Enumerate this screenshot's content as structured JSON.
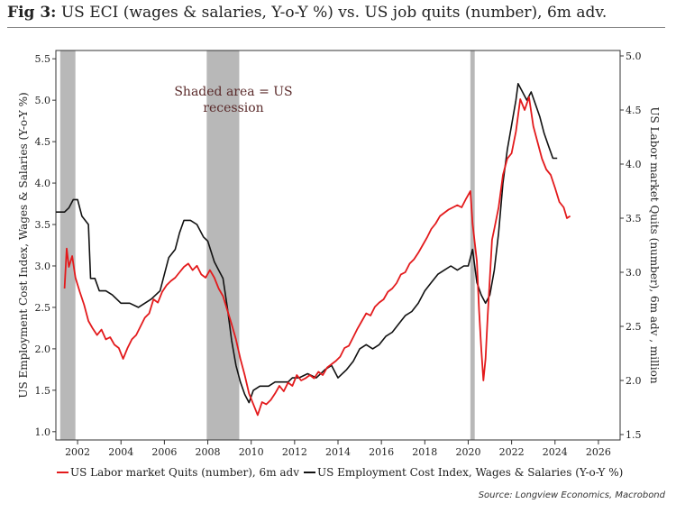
{
  "figure": {
    "fig_label": "Fig 3:",
    "title": "US ECI (wages & salaries, Y-o-Y %) vs. US job quits (number), 6m adv.",
    "source": "Source: Longview Economics, Macrobond"
  },
  "chart_data": {
    "type": "line",
    "annotation": "Shaded area = US recession",
    "annotation_lines": [
      "Shaded area = US",
      "recession"
    ],
    "x_range": [
      2001,
      2027
    ],
    "x_ticks": [
      "2002",
      "2004",
      "2006",
      "2008",
      "2010",
      "2012",
      "2014",
      "2016",
      "2018",
      "2020",
      "2022",
      "2024",
      "2026"
    ],
    "y_left": {
      "label": "US Employment Cost Index, Wages & Salaries (Y-o-Y %)",
      "range": [
        0.9,
        5.6
      ],
      "ticks": [
        "1.0",
        "1.5",
        "2.0",
        "2.5",
        "3.0",
        "3.5",
        "4.0",
        "4.5",
        "5.0",
        "5.5"
      ]
    },
    "y_right": {
      "label": "US Labor market Quits (number), 6m adv , million",
      "range": [
        1.45,
        5.05
      ],
      "ticks": [
        "1.5",
        "2.0",
        "2.5",
        "3.0",
        "3.5",
        "4.0",
        "4.5",
        "5.0"
      ]
    },
    "recessions": [
      [
        2001.2,
        2001.9
      ],
      [
        2007.95,
        2009.45
      ],
      [
        2020.1,
        2020.3
      ]
    ],
    "legend_position": "bottom",
    "series": [
      {
        "name": "US Labor market Quits (number), 6m adv",
        "axis": "right",
        "color": "#e31a1c",
        "points": [
          [
            2001.4,
            2.85
          ],
          [
            2001.5,
            3.22
          ],
          [
            2001.6,
            3.05
          ],
          [
            2001.75,
            3.15
          ],
          [
            2001.9,
            2.95
          ],
          [
            2002.1,
            2.82
          ],
          [
            2002.3,
            2.7
          ],
          [
            2002.5,
            2.55
          ],
          [
            2002.7,
            2.48
          ],
          [
            2002.9,
            2.42
          ],
          [
            2003.1,
            2.47
          ],
          [
            2003.3,
            2.38
          ],
          [
            2003.5,
            2.4
          ],
          [
            2003.7,
            2.33
          ],
          [
            2003.9,
            2.3
          ],
          [
            2004.1,
            2.2
          ],
          [
            2004.3,
            2.3
          ],
          [
            2004.5,
            2.38
          ],
          [
            2004.7,
            2.42
          ],
          [
            2004.9,
            2.5
          ],
          [
            2005.1,
            2.58
          ],
          [
            2005.3,
            2.62
          ],
          [
            2005.5,
            2.75
          ],
          [
            2005.7,
            2.72
          ],
          [
            2005.9,
            2.82
          ],
          [
            2006.1,
            2.88
          ],
          [
            2006.3,
            2.92
          ],
          [
            2006.5,
            2.95
          ],
          [
            2006.7,
            3.0
          ],
          [
            2006.9,
            3.05
          ],
          [
            2007.1,
            3.08
          ],
          [
            2007.3,
            3.02
          ],
          [
            2007.5,
            3.06
          ],
          [
            2007.7,
            2.98
          ],
          [
            2007.9,
            2.95
          ],
          [
            2008.1,
            3.02
          ],
          [
            2008.3,
            2.95
          ],
          [
            2008.5,
            2.85
          ],
          [
            2008.7,
            2.78
          ],
          [
            2008.9,
            2.65
          ],
          [
            2009.1,
            2.52
          ],
          [
            2009.3,
            2.38
          ],
          [
            2009.5,
            2.2
          ],
          [
            2009.7,
            2.05
          ],
          [
            2009.9,
            1.88
          ],
          [
            2010.1,
            1.78
          ],
          [
            2010.3,
            1.68
          ],
          [
            2010.5,
            1.8
          ],
          [
            2010.7,
            1.78
          ],
          [
            2010.9,
            1.82
          ],
          [
            2011.1,
            1.88
          ],
          [
            2011.3,
            1.95
          ],
          [
            2011.5,
            1.9
          ],
          [
            2011.7,
            1.98
          ],
          [
            2011.9,
            1.95
          ],
          [
            2012.1,
            2.05
          ],
          [
            2012.3,
            2.0
          ],
          [
            2012.5,
            2.02
          ],
          [
            2012.7,
            2.05
          ],
          [
            2012.9,
            2.02
          ],
          [
            2013.1,
            2.08
          ],
          [
            2013.3,
            2.05
          ],
          [
            2013.5,
            2.12
          ],
          [
            2013.7,
            2.15
          ],
          [
            2013.9,
            2.18
          ],
          [
            2014.1,
            2.22
          ],
          [
            2014.3,
            2.3
          ],
          [
            2014.5,
            2.32
          ],
          [
            2014.7,
            2.4
          ],
          [
            2014.9,
            2.48
          ],
          [
            2015.1,
            2.55
          ],
          [
            2015.3,
            2.62
          ],
          [
            2015.5,
            2.6
          ],
          [
            2015.7,
            2.68
          ],
          [
            2015.9,
            2.72
          ],
          [
            2016.1,
            2.75
          ],
          [
            2016.3,
            2.82
          ],
          [
            2016.5,
            2.85
          ],
          [
            2016.7,
            2.9
          ],
          [
            2016.9,
            2.98
          ],
          [
            2017.1,
            3.0
          ],
          [
            2017.3,
            3.08
          ],
          [
            2017.5,
            3.12
          ],
          [
            2017.7,
            3.18
          ],
          [
            2017.9,
            3.25
          ],
          [
            2018.1,
            3.32
          ],
          [
            2018.3,
            3.4
          ],
          [
            2018.5,
            3.45
          ],
          [
            2018.7,
            3.52
          ],
          [
            2018.9,
            3.55
          ],
          [
            2019.1,
            3.58
          ],
          [
            2019.3,
            3.6
          ],
          [
            2019.5,
            3.62
          ],
          [
            2019.7,
            3.6
          ],
          [
            2019.9,
            3.68
          ],
          [
            2020.1,
            3.75
          ],
          [
            2020.2,
            3.45
          ],
          [
            2020.4,
            3.1
          ],
          [
            2020.5,
            2.65
          ],
          [
            2020.6,
            2.3
          ],
          [
            2020.7,
            2.0
          ],
          [
            2020.8,
            2.2
          ],
          [
            2020.9,
            2.6
          ],
          [
            2021.0,
            2.95
          ],
          [
            2021.1,
            3.3
          ],
          [
            2021.2,
            3.4
          ],
          [
            2021.4,
            3.6
          ],
          [
            2021.6,
            3.9
          ],
          [
            2021.8,
            4.05
          ],
          [
            2022.0,
            4.1
          ],
          [
            2022.2,
            4.3
          ],
          [
            2022.4,
            4.6
          ],
          [
            2022.6,
            4.5
          ],
          [
            2022.8,
            4.62
          ],
          [
            2023.0,
            4.35
          ],
          [
            2023.2,
            4.2
          ],
          [
            2023.4,
            4.05
          ],
          [
            2023.6,
            3.95
          ],
          [
            2023.8,
            3.9
          ],
          [
            2024.0,
            3.78
          ],
          [
            2024.2,
            3.65
          ],
          [
            2024.4,
            3.6
          ],
          [
            2024.55,
            3.5
          ],
          [
            2024.7,
            3.52
          ]
        ]
      },
      {
        "name": "US Employment Cost Index, Wages & Salaries (Y-o-Y %)",
        "axis": "left",
        "color": "#111111",
        "points": [
          [
            2001.0,
            3.65
          ],
          [
            2001.4,
            3.65
          ],
          [
            2001.6,
            3.7
          ],
          [
            2001.8,
            3.8
          ],
          [
            2002.0,
            3.8
          ],
          [
            2002.2,
            3.6
          ],
          [
            2002.5,
            3.5
          ],
          [
            2002.6,
            2.85
          ],
          [
            2002.8,
            2.85
          ],
          [
            2003.0,
            2.7
          ],
          [
            2003.3,
            2.7
          ],
          [
            2003.6,
            2.65
          ],
          [
            2004.0,
            2.55
          ],
          [
            2004.4,
            2.55
          ],
          [
            2004.8,
            2.5
          ],
          [
            2005.1,
            2.55
          ],
          [
            2005.4,
            2.6
          ],
          [
            2005.6,
            2.65
          ],
          [
            2005.8,
            2.7
          ],
          [
            2006.0,
            2.9
          ],
          [
            2006.2,
            3.1
          ],
          [
            2006.5,
            3.2
          ],
          [
            2006.7,
            3.4
          ],
          [
            2006.9,
            3.55
          ],
          [
            2007.2,
            3.55
          ],
          [
            2007.5,
            3.5
          ],
          [
            2007.8,
            3.35
          ],
          [
            2008.0,
            3.3
          ],
          [
            2008.3,
            3.05
          ],
          [
            2008.5,
            2.95
          ],
          [
            2008.7,
            2.85
          ],
          [
            2008.9,
            2.5
          ],
          [
            2009.1,
            2.1
          ],
          [
            2009.3,
            1.8
          ],
          [
            2009.5,
            1.6
          ],
          [
            2009.7,
            1.45
          ],
          [
            2009.9,
            1.35
          ],
          [
            2010.1,
            1.5
          ],
          [
            2010.4,
            1.55
          ],
          [
            2010.8,
            1.55
          ],
          [
            2011.1,
            1.6
          ],
          [
            2011.4,
            1.6
          ],
          [
            2011.7,
            1.6
          ],
          [
            2011.9,
            1.65
          ],
          [
            2012.2,
            1.65
          ],
          [
            2012.6,
            1.7
          ],
          [
            2013.0,
            1.65
          ],
          [
            2013.4,
            1.75
          ],
          [
            2013.7,
            1.8
          ],
          [
            2014.0,
            1.65
          ],
          [
            2014.4,
            1.75
          ],
          [
            2014.7,
            1.85
          ],
          [
            2015.0,
            2.0
          ],
          [
            2015.3,
            2.05
          ],
          [
            2015.6,
            2.0
          ],
          [
            2015.9,
            2.05
          ],
          [
            2016.2,
            2.15
          ],
          [
            2016.5,
            2.2
          ],
          [
            2016.8,
            2.3
          ],
          [
            2017.1,
            2.4
          ],
          [
            2017.4,
            2.45
          ],
          [
            2017.7,
            2.55
          ],
          [
            2018.0,
            2.7
          ],
          [
            2018.3,
            2.8
          ],
          [
            2018.6,
            2.9
          ],
          [
            2018.9,
            2.95
          ],
          [
            2019.2,
            3.0
          ],
          [
            2019.5,
            2.95
          ],
          [
            2019.8,
            3.0
          ],
          [
            2020.0,
            3.0
          ],
          [
            2020.2,
            3.2
          ],
          [
            2020.4,
            2.8
          ],
          [
            2020.6,
            2.65
          ],
          [
            2020.8,
            2.55
          ],
          [
            2021.0,
            2.65
          ],
          [
            2021.2,
            2.95
          ],
          [
            2021.4,
            3.4
          ],
          [
            2021.6,
            4.0
          ],
          [
            2021.8,
            4.4
          ],
          [
            2022.0,
            4.7
          ],
          [
            2022.2,
            5.0
          ],
          [
            2022.3,
            5.2
          ],
          [
            2022.5,
            5.1
          ],
          [
            2022.7,
            5.0
          ],
          [
            2022.9,
            5.1
          ],
          [
            2023.1,
            4.95
          ],
          [
            2023.3,
            4.8
          ],
          [
            2023.5,
            4.6
          ],
          [
            2023.7,
            4.45
          ],
          [
            2023.9,
            4.3
          ],
          [
            2024.1,
            4.3
          ]
        ]
      }
    ]
  }
}
